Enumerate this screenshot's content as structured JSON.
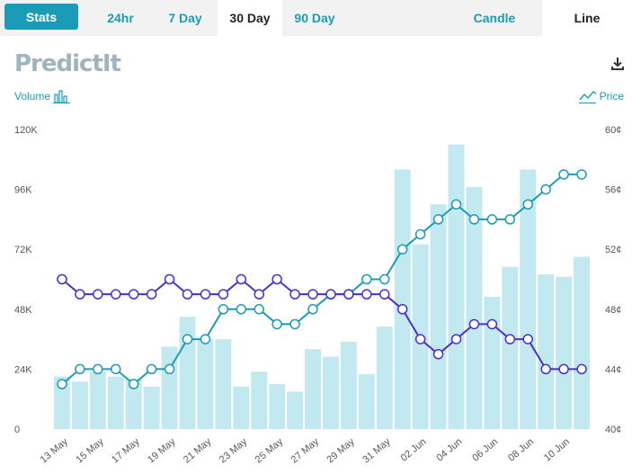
{
  "toolbar": {
    "stats_label": "Stats",
    "tabs": [
      {
        "label": "24hr",
        "active": false
      },
      {
        "label": "7 Day",
        "active": false
      },
      {
        "label": "30 Day",
        "active": true
      },
      {
        "label": "90 Day",
        "active": false
      }
    ],
    "candle_label": "Candle",
    "line_label": "Line",
    "line_active": true
  },
  "logo_text": "PredictIt",
  "legend": {
    "volume_label": "Volume",
    "price_label": "Price",
    "volume_icon": "bar-chart-icon",
    "price_icon": "line-chart-icon"
  },
  "icons": {
    "download": "download-icon"
  },
  "colors": {
    "accent": "#1b9cb6",
    "volume_bar": "#c3e9f0",
    "series_a": "#1b9cb6",
    "series_b": "#4a2fc9"
  },
  "chart_data": {
    "type": "line",
    "x": [
      "13 May",
      "14 May",
      "15 May",
      "16 May",
      "17 May",
      "18 May",
      "19 May",
      "20 May",
      "21 May",
      "22 May",
      "23 May",
      "24 May",
      "25 May",
      "26 May",
      "27 May",
      "28 May",
      "29 May",
      "30 May",
      "31 May",
      "01 Jun",
      "02 Jun",
      "03 Jun",
      "04 Jun",
      "05 Jun",
      "06 Jun",
      "07 Jun",
      "08 Jun",
      "09 Jun",
      "10 Jun",
      "11 Jun"
    ],
    "x_tick_labels": [
      "13 May",
      "15 May",
      "17 May",
      "19 May",
      "21 May",
      "23 May",
      "25 May",
      "27 May",
      "29 May",
      "31 May",
      "02 Jun",
      "04 Jun",
      "06 Jun",
      "08 Jun",
      "10 Jun"
    ],
    "volume": {
      "axis": "left",
      "ylim": [
        0,
        120000
      ],
      "ticks": [
        "0",
        "24K",
        "48K",
        "72K",
        "96K",
        "120K"
      ],
      "values": [
        21000,
        19000,
        23000,
        21000,
        20000,
        17000,
        33000,
        45000,
        36000,
        36000,
        17000,
        23000,
        18000,
        15000,
        32000,
        29000,
        35000,
        22000,
        41000,
        104000,
        74000,
        90000,
        114000,
        97000,
        53000,
        65000,
        104000,
        62000,
        61000,
        69000
      ]
    },
    "price_axis": {
      "axis": "right",
      "ylim": [
        40,
        60
      ],
      "ticks": [
        "40¢",
        "44¢",
        "48¢",
        "52¢",
        "56¢",
        "60¢"
      ]
    },
    "series": [
      {
        "values": [
          43,
          44,
          44,
          44,
          43,
          44,
          44,
          46,
          46,
          48,
          48,
          48,
          47,
          47,
          48,
          49,
          49,
          50,
          50,
          52,
          53,
          54,
          55,
          54,
          54,
          54,
          55,
          56,
          57,
          57
        ]
      },
      {
        "values": [
          50,
          49,
          49,
          49,
          49,
          49,
          50,
          49,
          49,
          49,
          50,
          49,
          50,
          49,
          49,
          49,
          49,
          49,
          49,
          48,
          46,
          45,
          46,
          47,
          47,
          46,
          46,
          44,
          44,
          44
        ]
      }
    ],
    "grid": false
  }
}
